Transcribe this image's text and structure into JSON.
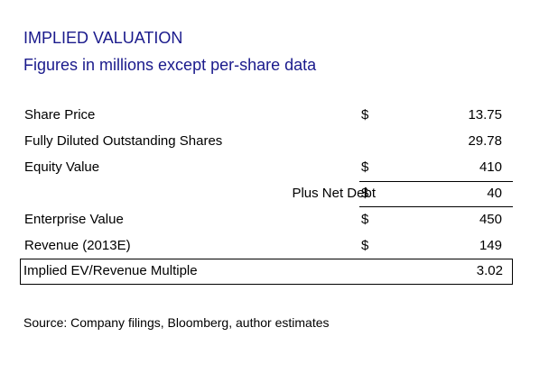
{
  "header": {
    "title": "IMPLIED VALUATION",
    "subtitle": "Figures in millions except per-share data"
  },
  "rows": [
    {
      "label": "Share Price",
      "currency": "$",
      "value": "13.75"
    },
    {
      "label": "Fully Diluted Outstanding Shares",
      "currency": "",
      "value": "29.78"
    },
    {
      "label": "Equity Value",
      "currency": "$",
      "value": "410"
    },
    {
      "label": "Plus Net Debt",
      "currency": "$",
      "value": "40"
    },
    {
      "label": "Enterprise Value",
      "currency": "$",
      "value": "450"
    },
    {
      "label": "Revenue (2013E)",
      "currency": "$",
      "value": "149"
    },
    {
      "label": "Implied EV/Revenue Multiple",
      "currency": "",
      "value": "3.02"
    }
  ],
  "footer": {
    "source": "Source: Company filings, Bloomberg, author estimates"
  }
}
